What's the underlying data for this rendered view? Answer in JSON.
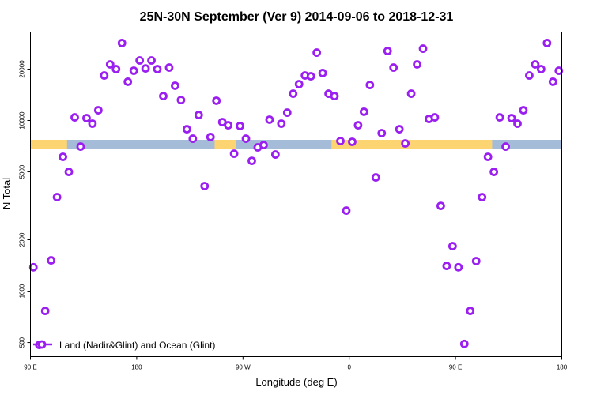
{
  "chart_data": {
    "type": "scatter",
    "title": "25N-30N September (Ver 9)   2014-09-06 to 2018-12-31",
    "xlabel": "Longitude (deg E)",
    "ylabel": "N Total",
    "xlim": [
      90,
      540
    ],
    "ylim": [
      413,
      33000
    ],
    "yscale": "log",
    "x_ticks": [
      {
        "value": 90,
        "label": "90 E"
      },
      {
        "value": 180,
        "label": "180"
      },
      {
        "value": 270,
        "label": "90 W"
      },
      {
        "value": 360,
        "label": "0"
      },
      {
        "value": 450,
        "label": "90 E"
      },
      {
        "value": 540,
        "label": "180"
      }
    ],
    "y_ticks": [
      {
        "value": 500,
        "label": "500"
      },
      {
        "value": 1000,
        "label": "1000"
      },
      {
        "value": 2000,
        "label": "2000"
      },
      {
        "value": 5000,
        "label": "5000"
      },
      {
        "value": 10000,
        "label": "10000"
      },
      {
        "value": 20000,
        "label": "20000"
      }
    ],
    "legend": {
      "label": "Land (Nadir&Glint) and Ocean (Glint)",
      "placement": "bottom-left"
    },
    "land_ocean_band": {
      "land_color": "#fcd472",
      "ocean_color": "#a5bcd9",
      "land_segments": [
        [
          90,
          121
        ],
        [
          246,
          264
        ],
        [
          345,
          481
        ]
      ]
    },
    "series": [
      {
        "name": "Land (Nadir&Glint) and Ocean (Glint)",
        "color": "#9b1ff0",
        "x_start": 92.5,
        "x_step": 5,
        "values": [
          1380,
          484,
          766,
          1515,
          3556,
          6124,
          5000,
          10430,
          7030,
          10330,
          9580,
          11480,
          18360,
          21320,
          20000,
          28440,
          16870,
          19570,
          22480,
          20190,
          22480,
          20000,
          13900,
          20420,
          15990,
          13180,
          8890,
          7820,
          10770,
          4130,
          8000,
          13060,
          9790,
          9380,
          6390,
          9290,
          7820,
          5800,
          6960,
          7180,
          10110,
          6320,
          9580,
          11120,
          14360,
          16330,
          18360,
          18160,
          25000,
          18970,
          14360,
          13900,
          7580,
          2965,
          7500,
          9380,
          11250,
          16150,
          4640,
          8430,
          25540,
          20420,
          8890,
          7340,
          14360,
          21320,
          26360,
          10210,
          10430,
          3160,
          1406,
          1835,
          1380,
          491,
          766,
          1500,
          3556,
          6124,
          5000,
          10430,
          7030,
          10330,
          9580,
          11480,
          18360,
          21320,
          20000,
          28440,
          16870,
          19570
        ]
      }
    ]
  }
}
